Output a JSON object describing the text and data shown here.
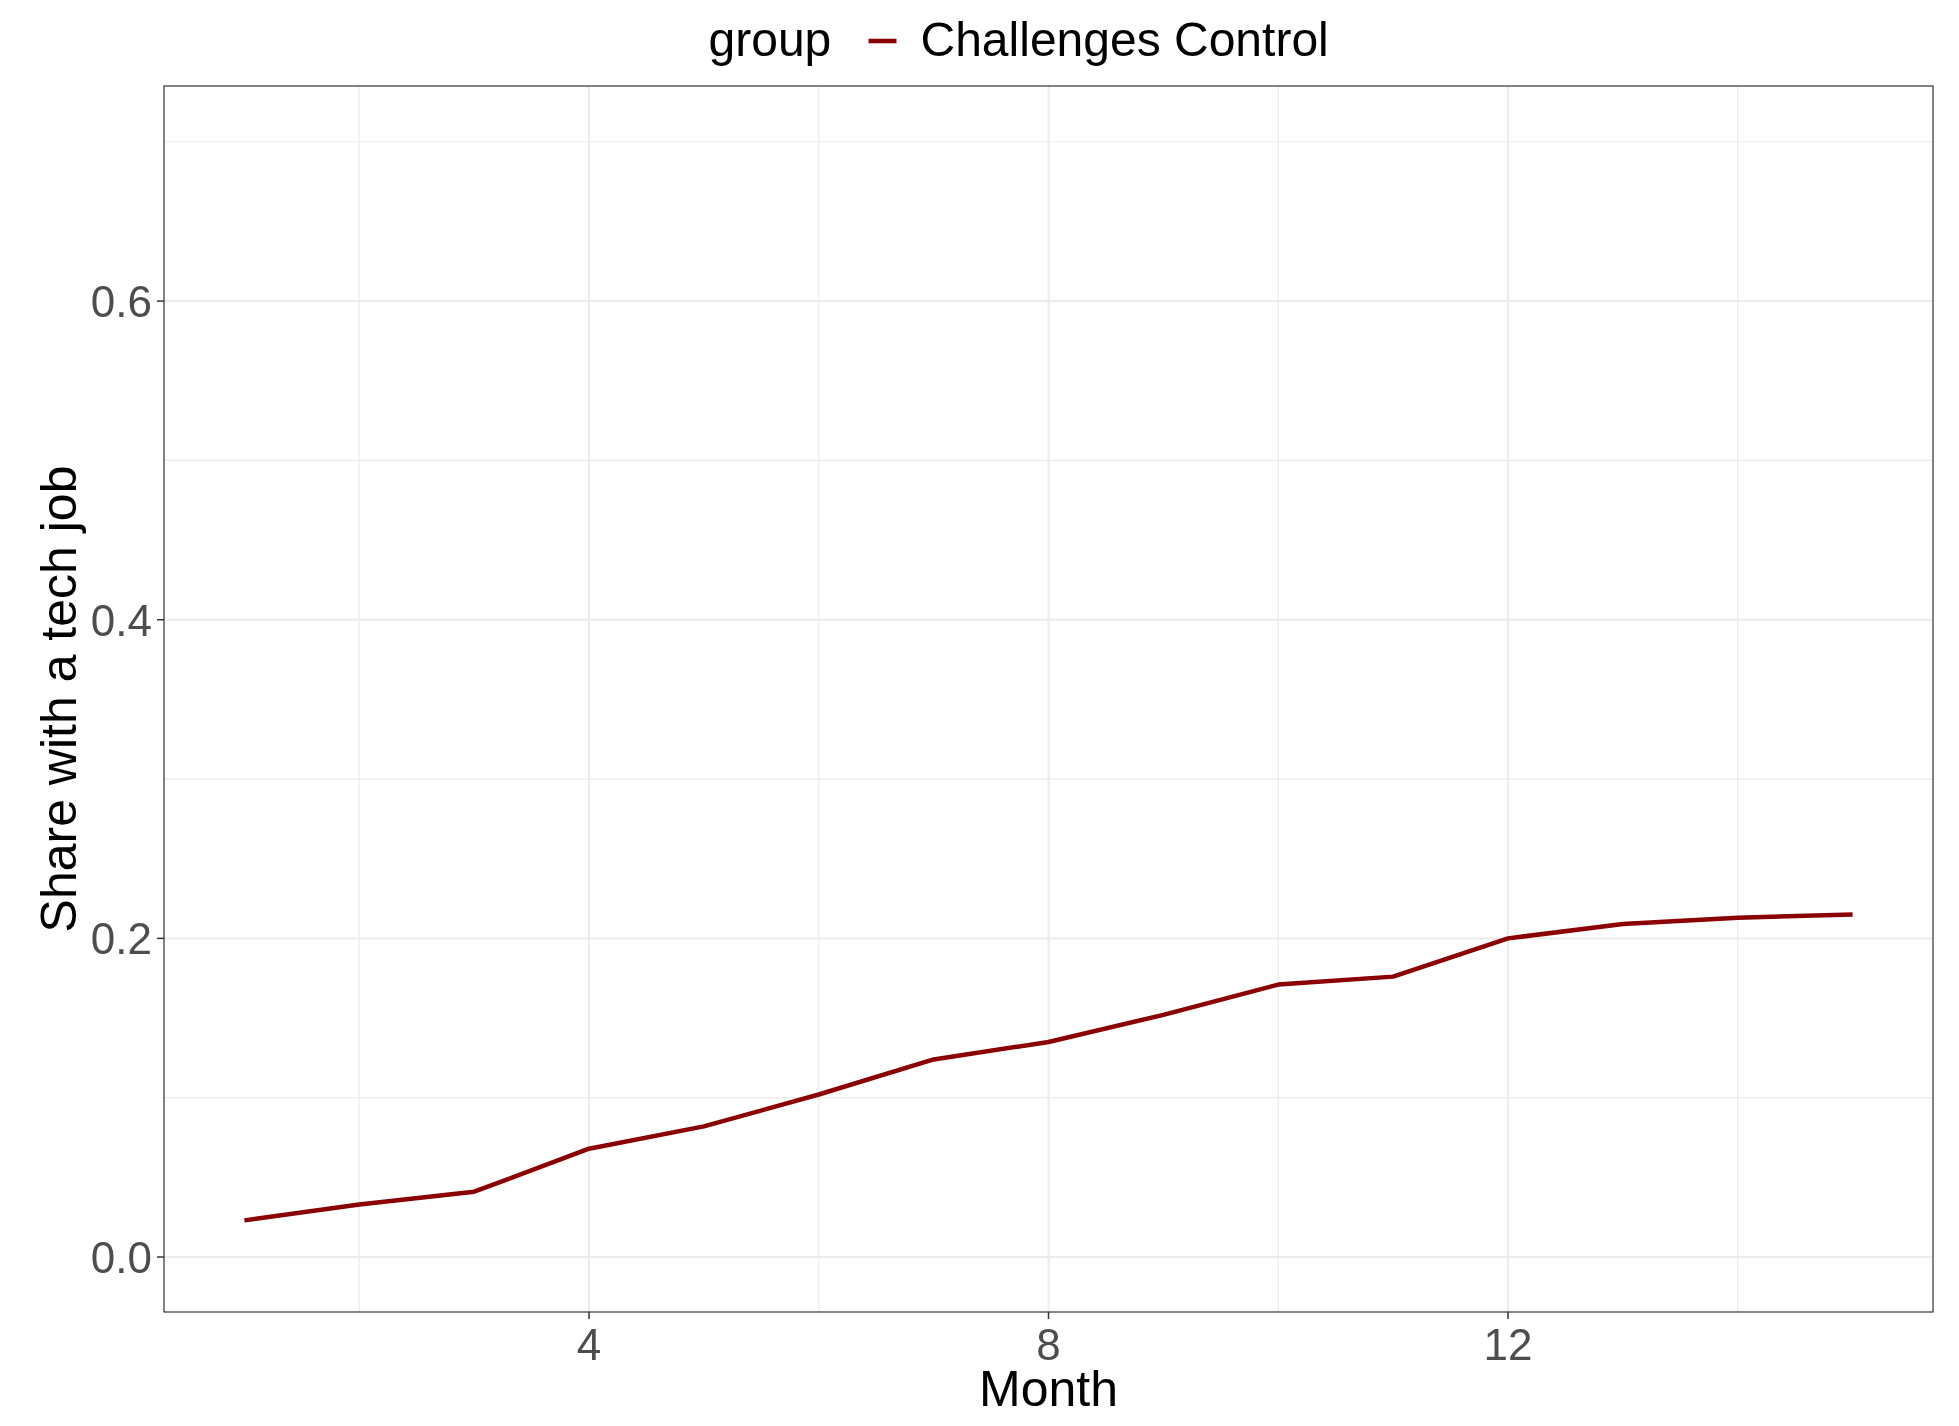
{
  "chart_data": {
    "type": "line",
    "xlabel": "Month",
    "ylabel": "Share with a tech job",
    "legend_title": "group",
    "legend": "top",
    "x": [
      1,
      2,
      3,
      4,
      5,
      6,
      7,
      8,
      9,
      10,
      11,
      12,
      13,
      14,
      15
    ],
    "series": [
      {
        "name": "Challenges Control",
        "color": "#8b0000",
        "values": [
          0.023,
          0.033,
          0.041,
          0.068,
          0.082,
          0.102,
          0.124,
          0.135,
          0.152,
          0.171,
          0.176,
          0.2,
          0.209,
          0.213,
          0.215
        ]
      }
    ],
    "xlim": [
      0.3,
      15.7
    ],
    "ylim": [
      -0.0345,
      0.735
    ],
    "xticks": [
      {
        "value": 2,
        "label": null
      },
      4,
      {
        "value": 6,
        "label": null
      },
      8,
      {
        "value": 10,
        "label": null
      },
      12,
      {
        "value": 14,
        "label": null
      }
    ],
    "yticks": [
      {
        "value": 0.0,
        "label": "0.0"
      },
      {
        "value": 0.1,
        "label": null
      },
      {
        "value": 0.2,
        "label": "0.2"
      },
      {
        "value": 0.3,
        "label": null
      },
      {
        "value": 0.4,
        "label": "0.4"
      },
      {
        "value": 0.5,
        "label": null
      },
      {
        "value": 0.6,
        "label": "0.6"
      },
      {
        "value": 0.7,
        "label": null
      }
    ],
    "grid": true,
    "line_style": "solid",
    "marker": "none"
  }
}
